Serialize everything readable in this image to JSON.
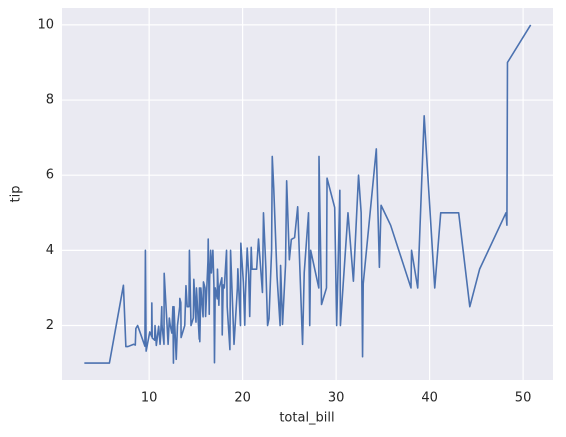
{
  "chart_data": {
    "type": "line",
    "xlabel": "total_bill",
    "ylabel": "tip",
    "color": "#4c72b0",
    "background": "#eaeaf2",
    "grid": true,
    "xlim": [
      0.68,
      53.2
    ],
    "ylim": [
      0.55,
      10.45
    ],
    "xticks": [
      10,
      20,
      30,
      40,
      50
    ],
    "yticks": [
      2,
      4,
      6,
      8,
      10
    ],
    "x": [
      3.07,
      5.75,
      7.25,
      7.51,
      7.74,
      8.35,
      8.52,
      8.58,
      8.77,
      9.55,
      9.6,
      9.68,
      10.07,
      10.27,
      10.29,
      10.33,
      10.59,
      10.63,
      10.77,
      11.02,
      11.17,
      11.24,
      11.35,
      11.38,
      11.59,
      11.61,
      12.03,
      12.16,
      12.26,
      12.43,
      12.54,
      12.6,
      12.66,
      12.74,
      12.9,
      13.03,
      13.27,
      13.28,
      13.39,
      13.42,
      13.81,
      13.94,
      14.07,
      14.26,
      14.31,
      14.48,
      14.73,
      14.78,
      15.01,
      15.06,
      15.36,
      15.38,
      15.42,
      15.53,
      15.77,
      15.81,
      15.98,
      16.04,
      16.29,
      16.32,
      16.43,
      16.47,
      16.58,
      16.66,
      16.82,
      16.93,
      16.99,
      17.07,
      17.29,
      17.31,
      17.46,
      17.51,
      17.78,
      17.82,
      17.92,
      18.04,
      18.28,
      18.29,
      18.35,
      18.64,
      18.71,
      19.08,
      19.44,
      19.49,
      19.77,
      19.81,
      20.08,
      20.23,
      20.29,
      20.49,
      20.65,
      20.76,
      20.92,
      21.01,
      21.5,
      21.7,
      22.12,
      22.23,
      22.49,
      22.67,
      22.82,
      23.1,
      23.17,
      23.33,
      23.68,
      24.01,
      24.06,
      24.27,
      24.59,
      24.71,
      25,
      25.21,
      25.56,
      25.89,
      26.41,
      26.59,
      27.05,
      27.18,
      27.28,
      28.15,
      28.17,
      28.44,
      28.97,
      29.03,
      29.85,
      30.06,
      30.4,
      30.46,
      31.27,
      31.85,
      32.4,
      32.68,
      32.83,
      32.9,
      34.3,
      34.63,
      34.81,
      35.83,
      38.01,
      38.07,
      38.73,
      39.42,
      40.55,
      41.19,
      43.11,
      44.3,
      45.35,
      48.17,
      48.27,
      48.33,
      50.81
    ],
    "values": [
      1,
      1,
      3.07,
      1.44,
      1.44,
      1.5,
      1.48,
      1.92,
      2,
      1.45,
      4,
      1.32,
      1.83,
      1.71,
      2.6,
      1.67,
      1.61,
      2,
      1.47,
      1.98,
      1.5,
      1.76,
      2.5,
      2,
      1.5,
      3.39,
      1.5,
      2.2,
      2,
      1.8,
      2.5,
      1,
      2.5,
      2.01,
      1.1,
      2,
      2.5,
      2.72,
      2.61,
      1.68,
      2,
      3.06,
      2.5,
      2.5,
      4,
      2,
      2.2,
      3.23,
      2.09,
      3,
      1.64,
      3,
      1.57,
      3,
      2.23,
      3.16,
      3,
      2.24,
      3.71,
      4.3,
      2.3,
      3.23,
      4,
      3.4,
      4,
      3.07,
      1.01,
      3,
      2.71,
      3.5,
      2.54,
      3,
      3.27,
      1.75,
      3.08,
      3,
      4,
      3.76,
      2.5,
      1.36,
      4,
      1.5,
      3,
      3.51,
      2,
      4.19,
      3.15,
      2.01,
      2.75,
      4.06,
      3.35,
      2.24,
      4.08,
      3.5,
      3.5,
      4.3,
      2.88,
      5,
      3.5,
      2,
      2.18,
      4,
      6.5,
      5.65,
      3.31,
      2,
      3.6,
      2.03,
      3.61,
      5.85,
      3.75,
      4.29,
      4.34,
      5.16,
      1.5,
      3.41,
      5,
      2,
      4,
      3,
      6.5,
      2.56,
      3,
      5.92,
      5.14,
      2,
      5.6,
      2,
      5,
      3.18,
      6,
      5,
      1.17,
      3.11,
      6.7,
      3.55,
      5.2,
      4.67,
      3,
      4,
      3,
      7.58,
      3,
      5,
      5,
      2.5,
      3.5,
      5,
      4.67,
      9,
      10
    ]
  }
}
